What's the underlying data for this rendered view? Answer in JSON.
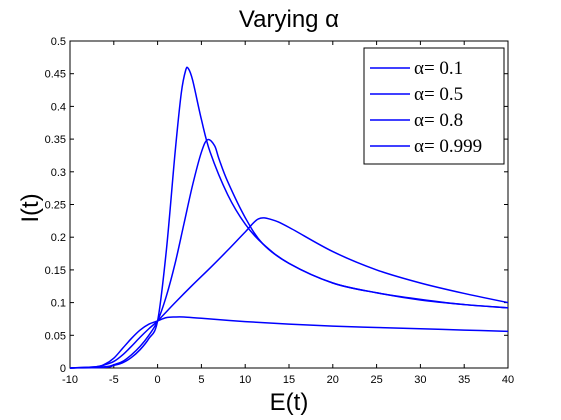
{
  "chart_data": {
    "type": "line",
    "title": "Varying α",
    "xlabel": "E(t)",
    "ylabel": "I(t)",
    "xlim": [
      -10,
      40
    ],
    "ylim": [
      0,
      0.5
    ],
    "xticks": [
      "-10",
      "-5",
      "0",
      "5",
      "10",
      "15",
      "20",
      "25",
      "30",
      "35",
      "40"
    ],
    "yticks": [
      "0",
      "0.05",
      "0.1",
      "0.15",
      "0.2",
      "0.25",
      "0.3",
      "0.35",
      "0.4",
      "0.45",
      "0.5"
    ],
    "grid": false,
    "legend_position": "top-right",
    "line_color": "#0000ff",
    "series": [
      {
        "name": "α= 0.1",
        "x": [
          -10,
          -7,
          -6,
          -5,
          -4,
          -3,
          -2,
          -1,
          0,
          1,
          2,
          3,
          5,
          10,
          15,
          20,
          25,
          30,
          35,
          40
        ],
        "y": [
          0,
          0.002,
          0.006,
          0.015,
          0.03,
          0.045,
          0.058,
          0.067,
          0.072,
          0.077,
          0.078,
          0.078,
          0.076,
          0.071,
          0.067,
          0.064,
          0.062,
          0.06,
          0.058,
          0.056
        ]
      },
      {
        "name": "α= 0.5",
        "x": [
          -10,
          -7,
          -6,
          -5,
          -4,
          -3,
          -2,
          -1,
          0,
          2,
          4,
          6,
          8,
          10,
          11.5,
          13,
          15,
          20,
          25,
          30,
          35,
          40
        ],
        "y": [
          0,
          0.002,
          0.005,
          0.01,
          0.02,
          0.033,
          0.047,
          0.06,
          0.072,
          0.1,
          0.127,
          0.153,
          0.18,
          0.208,
          0.228,
          0.227,
          0.215,
          0.178,
          0.15,
          0.13,
          0.114,
          0.1
        ]
      },
      {
        "name": "α= 0.8",
        "x": [
          -10,
          -6,
          -5,
          -4,
          -3,
          -2,
          -1,
          0,
          1,
          2,
          3,
          4,
          5,
          5.7,
          6.5,
          7,
          8,
          10,
          12,
          15,
          20,
          25,
          30,
          35,
          40
        ],
        "y": [
          0,
          0.002,
          0.005,
          0.01,
          0.02,
          0.033,
          0.05,
          0.072,
          0.11,
          0.16,
          0.22,
          0.28,
          0.33,
          0.349,
          0.34,
          0.32,
          0.285,
          0.23,
          0.19,
          0.16,
          0.13,
          0.115,
          0.104,
          0.097,
          0.092
        ]
      },
      {
        "name": "α= 0.999",
        "x": [
          -10,
          -6,
          -5,
          -4,
          -3,
          -2,
          -1,
          0,
          1,
          2,
          2.7,
          3.2,
          3.5,
          4,
          5,
          6,
          8,
          10,
          12,
          15,
          20,
          25,
          30,
          35,
          40
        ],
        "y": [
          0,
          0.001,
          0.004,
          0.008,
          0.016,
          0.028,
          0.045,
          0.072,
          0.18,
          0.33,
          0.42,
          0.455,
          0.458,
          0.44,
          0.38,
          0.33,
          0.265,
          0.22,
          0.19,
          0.16,
          0.13,
          0.115,
          0.105,
          0.097,
          0.092
        ]
      }
    ]
  }
}
